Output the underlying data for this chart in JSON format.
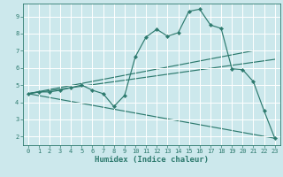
{
  "xlabel": "Humidex (Indice chaleur)",
  "background_color": "#cce8ec",
  "grid_color": "#ffffff",
  "line_color": "#2d7a6e",
  "xlim": [
    -0.5,
    23.5
  ],
  "ylim": [
    1.5,
    9.75
  ],
  "xticks": [
    0,
    1,
    2,
    3,
    4,
    5,
    6,
    7,
    8,
    9,
    10,
    11,
    12,
    13,
    14,
    15,
    16,
    17,
    18,
    19,
    20,
    21,
    22,
    23
  ],
  "yticks": [
    2,
    3,
    4,
    5,
    6,
    7,
    8,
    9
  ],
  "series1_x": [
    0,
    1,
    2,
    3,
    4,
    5,
    6,
    7,
    8,
    9,
    10,
    11,
    12,
    13,
    14,
    15,
    16,
    17,
    18,
    19,
    20,
    21,
    22,
    23
  ],
  "series1_y": [
    4.5,
    4.6,
    4.6,
    4.7,
    4.85,
    5.0,
    4.7,
    4.5,
    3.75,
    4.4,
    6.65,
    7.8,
    8.25,
    7.85,
    8.05,
    9.3,
    9.42,
    8.5,
    8.3,
    5.95,
    5.9,
    5.2,
    3.5,
    1.9
  ],
  "series2_x": [
    0,
    21
  ],
  "series2_y": [
    4.5,
    7.0
  ],
  "series3_x": [
    0,
    23
  ],
  "series3_y": [
    4.5,
    6.5
  ],
  "series4_x": [
    0,
    23
  ],
  "series4_y": [
    4.5,
    1.9
  ]
}
